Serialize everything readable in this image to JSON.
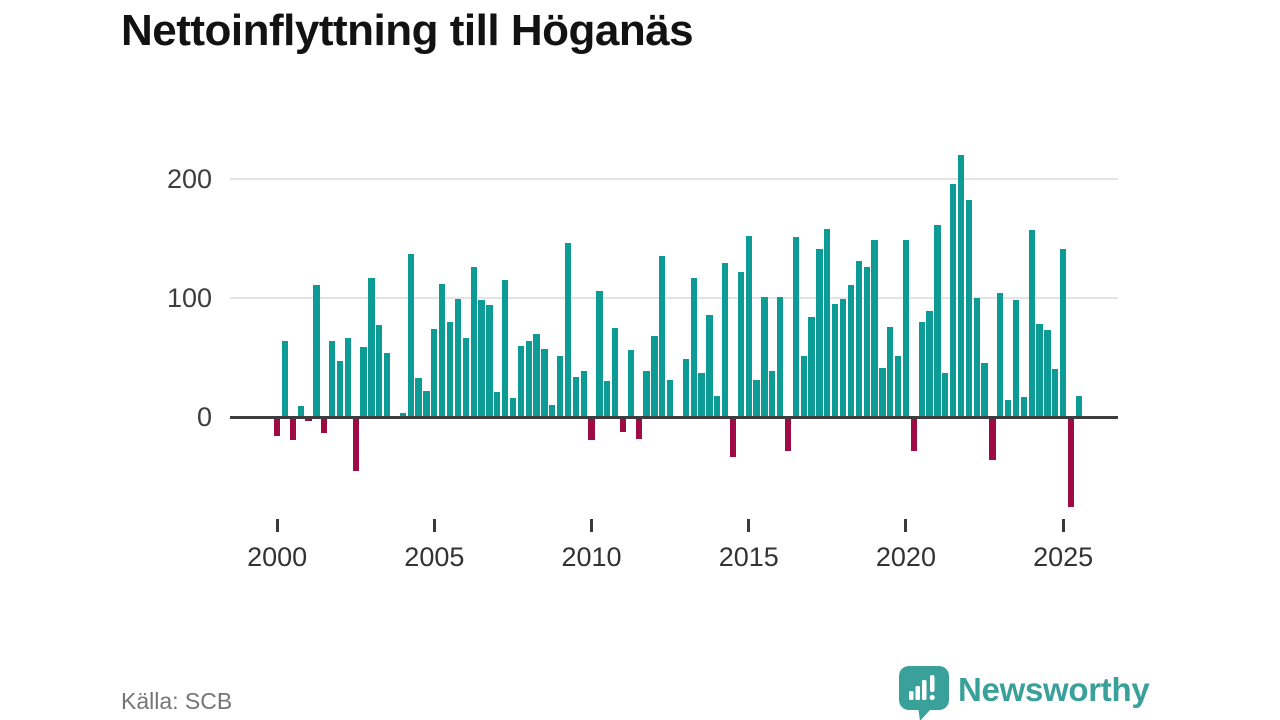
{
  "title": "Nettoinflyttning till Höganäs",
  "source": "Källa: SCB",
  "brand": {
    "name": "Newsworthy",
    "icon": "speech-bubble-bar-chart-icon",
    "color": "#3aa09a"
  },
  "chart_data": {
    "type": "bar",
    "title": "Nettoinflyttning till Höganäs",
    "frequency": "quarterly",
    "start_period": "2000 Q1",
    "end_period": "2025 Q3",
    "values": [
      -15,
      64,
      -18,
      9,
      -2,
      111,
      -12,
      64,
      47,
      66,
      -44,
      59,
      117,
      77,
      54,
      0,
      3,
      137,
      33,
      22,
      74,
      112,
      80,
      99,
      66,
      126,
      98,
      94,
      21,
      115,
      16,
      60,
      64,
      70,
      57,
      10,
      51,
      146,
      34,
      39,
      -18,
      106,
      30,
      75,
      -11,
      56,
      -17,
      39,
      68,
      135,
      31,
      0,
      49,
      117,
      37,
      86,
      18,
      129,
      -32,
      122,
      152,
      31,
      101,
      39,
      101,
      -27,
      151,
      51,
      84,
      141,
      158,
      95,
      99,
      111,
      131,
      126,
      149,
      41,
      76,
      51,
      149,
      -27,
      80,
      89,
      161,
      37,
      196,
      220,
      182,
      100,
      45,
      -35,
      104,
      14,
      98,
      17,
      157,
      78,
      73,
      40,
      141,
      -74,
      18
    ],
    "x_tick_labels": [
      "2000",
      "2005",
      "2010",
      "2015",
      "2020",
      "2025"
    ],
    "x_tick_indices": [
      0,
      20,
      40,
      60,
      80,
      100
    ],
    "y_tick_labels": [
      "0",
      "100",
      "200"
    ],
    "y_ticks": [
      0,
      100,
      200
    ],
    "ylim": [
      -90,
      235
    ],
    "grid": "horizontal",
    "legend": "none",
    "positive_color": "#0d9c95",
    "negative_color": "#9e0b45"
  }
}
